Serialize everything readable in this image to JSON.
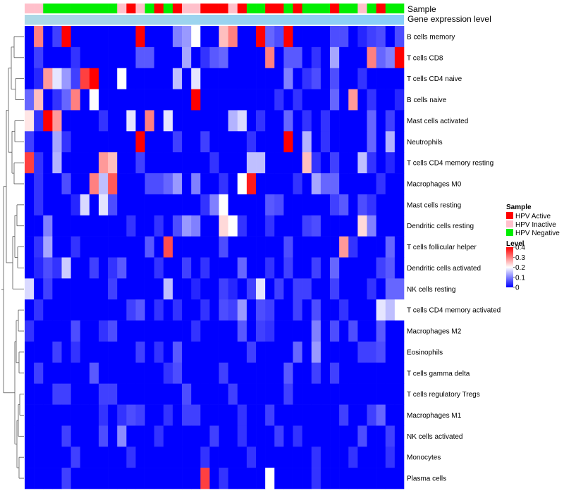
{
  "chart_data": {
    "type": "heatmap",
    "title": "",
    "xlabel": "",
    "ylabel": "",
    "annotation_tracks": [
      "Sample",
      "Gene expression level"
    ],
    "sample_groups": [
      "HPV Inactive",
      "HPV Inactive",
      "HPV Negative",
      "HPV Negative",
      "HPV Negative",
      "HPV Negative",
      "HPV Negative",
      "HPV Negative",
      "HPV Negative",
      "HPV Negative",
      "HPV Inactive",
      "HPV Active",
      "HPV Inactive",
      "HPV Negative",
      "HPV Active",
      "HPV Negative",
      "HPV Active",
      "HPV Inactive",
      "HPV Inactive",
      "HPV Active",
      "HPV Active",
      "HPV Active",
      "HPV Inactive",
      "HPV Active",
      "HPV Negative",
      "HPV Negative",
      "HPV Active",
      "HPV Active",
      "HPV Negative",
      "HPV Active",
      "HPV Negative",
      "HPV Negative",
      "HPV Negative",
      "HPV Active",
      "HPV Negative",
      "HPV Negative",
      "HPV Inactive",
      "HPV Negative",
      "HPV Active",
      "HPV Negative",
      "HPV Negative"
    ],
    "gene_expression_bar": "light-blue gradient",
    "rows": [
      "B cells memory",
      "T cells CD8",
      "T cells CD4 naive",
      "B cells naive",
      "Mast cells activated",
      "Neutrophils",
      "T cells CD4 memory resting",
      "Macrophages M0",
      "Mast cells resting",
      "Dendritic cells resting",
      "T cells follicular helper",
      "Dendritic cells activated",
      "NK cells resting",
      "T cells CD4 memory activated",
      "Macrophages M2",
      "Eosinophils",
      "T cells gamma delta",
      "T cells regulatory  Tregs",
      "Macrophages M1",
      "NK cells activated",
      "Monocytes",
      "Plasma cells"
    ],
    "values": [
      [
        0.0,
        0.3,
        0.0,
        0.05,
        0.4,
        0.0,
        0.0,
        0.0,
        0.0,
        0.0,
        0.0,
        0.0,
        0.4,
        0.0,
        0.0,
        0.0,
        0.1,
        0.12,
        0.2,
        0.0,
        0.0,
        0.25,
        0.3,
        0.0,
        0.0,
        0.4,
        0.08,
        0.06,
        0.4,
        0.0,
        0.0,
        0.0,
        0.0,
        0.06,
        0.06,
        0.0,
        0.03,
        0.05,
        0.06,
        0.0,
        0.06
      ],
      [
        0.0,
        0.05,
        0.0,
        0.0,
        0.0,
        0.04,
        0.0,
        0.0,
        0.0,
        0.0,
        0.0,
        0.0,
        0.07,
        0.07,
        0.0,
        0.0,
        0.0,
        0.13,
        0.0,
        0.04,
        0.07,
        0.08,
        0.0,
        0.0,
        0.0,
        0.0,
        0.3,
        0.0,
        0.07,
        0.07,
        0.0,
        0.04,
        0.0,
        0.13,
        0.0,
        0.0,
        0.0,
        0.3,
        0.08,
        0.1,
        0.4
      ],
      [
        0.0,
        0.03,
        0.28,
        0.18,
        0.12,
        0.05,
        0.35,
        0.4,
        0.0,
        0.0,
        0.2,
        0.0,
        0.0,
        0.0,
        0.0,
        0.0,
        0.15,
        0.0,
        0.18,
        0.0,
        0.0,
        0.0,
        0.0,
        0.0,
        0.0,
        0.0,
        0.0,
        0.0,
        0.1,
        0.0,
        0.04,
        0.06,
        0.0,
        0.06,
        0.0,
        0.0,
        0.04,
        0.0,
        0.0,
        0.0,
        0.0
      ],
      [
        0.08,
        0.25,
        0.0,
        0.04,
        0.08,
        0.3,
        0.0,
        0.2,
        0.0,
        0.0,
        0.0,
        0.0,
        0.0,
        0.0,
        0.0,
        0.0,
        0.0,
        0.0,
        0.4,
        0.0,
        0.0,
        0.0,
        0.0,
        0.0,
        0.0,
        0.0,
        0.0,
        0.04,
        0.0,
        0.04,
        0.0,
        0.0,
        0.0,
        0.08,
        0.0,
        0.28,
        0.0,
        0.04,
        0.0,
        0.0,
        0.03
      ],
      [
        0.22,
        0.04,
        0.4,
        0.28,
        0.0,
        0.0,
        0.0,
        0.0,
        0.04,
        0.0,
        0.0,
        0.18,
        0.0,
        0.3,
        0.0,
        0.18,
        0.0,
        0.0,
        0.0,
        0.0,
        0.0,
        0.0,
        0.14,
        0.17,
        0.0,
        0.04,
        0.0,
        0.0,
        0.08,
        0.0,
        0.04,
        0.0,
        0.04,
        0.0,
        0.0,
        0.0,
        0.0,
        0.08,
        0.0,
        0.05,
        0.0
      ],
      [
        0.05,
        0.0,
        0.0,
        0.13,
        0.04,
        0.0,
        0.0,
        0.0,
        0.0,
        0.0,
        0.0,
        0.0,
        0.4,
        0.0,
        0.0,
        0.0,
        0.05,
        0.0,
        0.0,
        0.05,
        0.0,
        0.0,
        0.0,
        0.0,
        0.04,
        0.0,
        0.0,
        0.0,
        0.4,
        0.0,
        0.14,
        0.0,
        0.04,
        0.0,
        0.0,
        0.0,
        0.0,
        0.08,
        0.0,
        0.14,
        0.0
      ],
      [
        0.35,
        0.04,
        0.0,
        0.14,
        0.0,
        0.0,
        0.0,
        0.0,
        0.28,
        0.25,
        0.0,
        0.0,
        0.05,
        0.0,
        0.0,
        0.0,
        0.0,
        0.0,
        0.0,
        0.0,
        0.04,
        0.0,
        0.0,
        0.0,
        0.15,
        0.15,
        0.0,
        0.0,
        0.0,
        0.0,
        0.25,
        0.04,
        0.0,
        0.05,
        0.0,
        0.0,
        0.15,
        0.04,
        0.0,
        0.03,
        0.0
      ],
      [
        0.0,
        0.04,
        0.0,
        0.0,
        0.06,
        0.0,
        0.0,
        0.3,
        0.15,
        0.33,
        0.0,
        0.0,
        0.0,
        0.06,
        0.06,
        0.08,
        0.12,
        0.0,
        0.1,
        0.0,
        0.0,
        0.04,
        0.0,
        0.2,
        0.38,
        0.0,
        0.0,
        0.0,
        0.0,
        0.04,
        0.0,
        0.13,
        0.08,
        0.08,
        0.0,
        0.0,
        0.0,
        0.0,
        0.04,
        0.0,
        0.0
      ],
      [
        0.0,
        0.04,
        0.0,
        0.0,
        0.0,
        0.03,
        0.17,
        0.0,
        0.18,
        0.06,
        0.0,
        0.0,
        0.0,
        0.0,
        0.0,
        0.0,
        0.0,
        0.0,
        0.0,
        0.04,
        0.1,
        0.2,
        0.0,
        0.0,
        0.0,
        0.0,
        0.07,
        0.06,
        0.0,
        0.0,
        0.0,
        0.0,
        0.0,
        0.05,
        0.07,
        0.0,
        0.06,
        0.04,
        0.0,
        0.0,
        0.0
      ],
      [
        0.0,
        0.0,
        0.1,
        0.0,
        0.0,
        0.0,
        0.0,
        0.0,
        0.0,
        0.0,
        0.0,
        0.04,
        0.0,
        0.0,
        0.04,
        0.0,
        0.06,
        0.12,
        0.1,
        0.0,
        0.0,
        0.23,
        0.2,
        0.04,
        0.0,
        0.0,
        0.04,
        0.0,
        0.0,
        0.0,
        0.05,
        0.06,
        0.0,
        0.0,
        0.0,
        0.0,
        0.23,
        0.1,
        0.0,
        0.0,
        0.0
      ],
      [
        0.0,
        0.04,
        0.13,
        0.0,
        0.0,
        0.04,
        0.0,
        0.0,
        0.0,
        0.0,
        0.0,
        0.0,
        0.0,
        0.07,
        0.0,
        0.34,
        0.0,
        0.0,
        0.0,
        0.0,
        0.0,
        0.06,
        0.0,
        0.0,
        0.0,
        0.0,
        0.0,
        0.0,
        0.06,
        0.0,
        0.0,
        0.0,
        0.0,
        0.0,
        0.28,
        0.04,
        0.0,
        0.0,
        0.0,
        0.08,
        0.0
      ],
      [
        0.0,
        0.03,
        0.06,
        0.04,
        0.16,
        0.0,
        0.0,
        0.05,
        0.0,
        0.04,
        0.07,
        0.0,
        0.0,
        0.0,
        0.04,
        0.0,
        0.0,
        0.05,
        0.0,
        0.04,
        0.0,
        0.0,
        0.0,
        0.08,
        0.0,
        0.0,
        0.04,
        0.0,
        0.05,
        0.0,
        0.0,
        0.05,
        0.0,
        0.08,
        0.0,
        0.0,
        0.0,
        0.0,
        0.05,
        0.07,
        0.0
      ],
      [
        0.17,
        0.0,
        0.05,
        0.0,
        0.0,
        0.0,
        0.0,
        0.0,
        0.0,
        0.05,
        0.0,
        0.0,
        0.0,
        0.0,
        0.0,
        0.15,
        0.0,
        0.0,
        0.03,
        0.0,
        0.0,
        0.05,
        0.03,
        0.0,
        0.05,
        0.18,
        0.0,
        0.05,
        0.0,
        0.05,
        0.05,
        0.0,
        0.0,
        0.05,
        0.0,
        0.0,
        0.0,
        0.04,
        0.0,
        0.08,
        0.08
      ],
      [
        0.0,
        0.04,
        0.0,
        0.0,
        0.0,
        0.0,
        0.0,
        0.0,
        0.0,
        0.0,
        0.0,
        0.05,
        0.07,
        0.0,
        0.04,
        0.0,
        0.04,
        0.0,
        0.0,
        0.04,
        0.0,
        0.06,
        0.05,
        0.12,
        0.0,
        0.06,
        0.05,
        0.0,
        0.0,
        0.05,
        0.0,
        0.06,
        0.0,
        0.0,
        0.04,
        0.0,
        0.0,
        0.0,
        0.18,
        0.15,
        0.2
      ],
      [
        0.04,
        0.0,
        0.0,
        0.0,
        0.0,
        0.06,
        0.0,
        0.0,
        0.04,
        0.06,
        0.0,
        0.0,
        0.0,
        0.0,
        0.0,
        0.0,
        0.0,
        0.0,
        0.04,
        0.0,
        0.0,
        0.0,
        0.0,
        0.07,
        0.0,
        0.05,
        0.04,
        0.0,
        0.0,
        0.0,
        0.0,
        0.1,
        0.0,
        0.06,
        0.0,
        0.06,
        0.0,
        0.0,
        0.07,
        0.0,
        0.0
      ],
      [
        0.0,
        0.0,
        0.0,
        0.05,
        0.0,
        0.04,
        0.0,
        0.0,
        0.0,
        0.0,
        0.0,
        0.0,
        0.05,
        0.0,
        0.04,
        0.0,
        0.07,
        0.0,
        0.0,
        0.0,
        0.0,
        0.0,
        0.0,
        0.0,
        0.05,
        0.0,
        0.0,
        0.0,
        0.0,
        0.08,
        0.0,
        0.12,
        0.0,
        0.0,
        0.0,
        0.0,
        0.05,
        0.05,
        0.06,
        0.0,
        0.0
      ],
      [
        0.0,
        0.05,
        0.0,
        0.0,
        0.0,
        0.0,
        0.0,
        0.07,
        0.0,
        0.0,
        0.0,
        0.0,
        0.0,
        0.0,
        0.0,
        0.04,
        0.06,
        0.0,
        0.0,
        0.0,
        0.0,
        0.05,
        0.0,
        0.0,
        0.0,
        0.0,
        0.0,
        0.0,
        0.07,
        0.0,
        0.0,
        0.05,
        0.0,
        0.05,
        0.0,
        0.0,
        0.0,
        0.0,
        0.0,
        0.0,
        0.0
      ],
      [
        0.0,
        0.0,
        0.0,
        0.05,
        0.05,
        0.0,
        0.0,
        0.0,
        0.05,
        0.05,
        0.0,
        0.0,
        0.0,
        0.0,
        0.0,
        0.0,
        0.0,
        0.06,
        0.0,
        0.0,
        0.0,
        0.0,
        0.05,
        0.0,
        0.0,
        0.0,
        0.0,
        0.0,
        0.05,
        0.0,
        0.0,
        0.0,
        0.0,
        0.0,
        0.0,
        0.0,
        0.0,
        0.0,
        0.0,
        0.0,
        0.0
      ],
      [
        0.0,
        0.0,
        0.0,
        0.0,
        0.0,
        0.0,
        0.0,
        0.0,
        0.04,
        0.0,
        0.04,
        0.06,
        0.05,
        0.0,
        0.0,
        0.04,
        0.0,
        0.05,
        0.05,
        0.0,
        0.0,
        0.0,
        0.0,
        0.04,
        0.0,
        0.0,
        0.05,
        0.0,
        0.0,
        0.0,
        0.0,
        0.0,
        0.0,
        0.0,
        0.05,
        0.0,
        0.0,
        0.05,
        0.08,
        0.0,
        0.0
      ],
      [
        0.0,
        0.0,
        0.0,
        0.0,
        0.05,
        0.0,
        0.0,
        0.0,
        0.06,
        0.0,
        0.11,
        0.0,
        0.0,
        0.0,
        0.04,
        0.0,
        0.0,
        0.0,
        0.0,
        0.0,
        0.05,
        0.0,
        0.0,
        0.04,
        0.0,
        0.0,
        0.0,
        0.05,
        0.0,
        0.04,
        0.0,
        0.0,
        0.0,
        0.0,
        0.0,
        0.0,
        0.06,
        0.0,
        0.0,
        0.05,
        0.0
      ],
      [
        0.0,
        0.0,
        0.0,
        0.0,
        0.0,
        0.05,
        0.0,
        0.0,
        0.0,
        0.0,
        0.0,
        0.04,
        0.0,
        0.0,
        0.0,
        0.0,
        0.0,
        0.0,
        0.0,
        0.04,
        0.0,
        0.0,
        0.0,
        0.0,
        0.04,
        0.0,
        0.0,
        0.0,
        0.0,
        0.0,
        0.0,
        0.04,
        0.0,
        0.0,
        0.0,
        0.04,
        0.0,
        0.0,
        0.0,
        0.04,
        0.0
      ],
      [
        0.0,
        0.0,
        0.0,
        0.0,
        0.05,
        0.0,
        0.0,
        0.0,
        0.0,
        0.0,
        0.0,
        0.0,
        0.0,
        0.0,
        0.0,
        0.0,
        0.0,
        0.0,
        0.0,
        0.35,
        0.0,
        0.04,
        0.0,
        0.0,
        0.0,
        0.0,
        0.2,
        0.0,
        0.0,
        0.0,
        0.0,
        0.04,
        0.0,
        0.0,
        0.0,
        0.0,
        0.0,
        0.0,
        0.0,
        0.0,
        0.0
      ]
    ],
    "legend": {
      "sample_title": "Sample",
      "sample_entries": [
        {
          "label": "HPV Active",
          "color": "#ff0000"
        },
        {
          "label": "HPV Inactive",
          "color": "#ffc0cb"
        },
        {
          "label": "HPV Negative",
          "color": "#00ee00"
        }
      ],
      "level_title": "Level",
      "level_ticks": [
        "0.4",
        "0.3",
        "0.2",
        "0.1",
        "0"
      ],
      "level_tick_values": [
        0.4,
        0.3,
        0.2,
        0.1,
        0
      ],
      "level_range": [
        0,
        0.4
      ],
      "colors": {
        "low": "#0000ff",
        "mid": "#ffffff",
        "high": "#ff0000"
      },
      "placement": "right"
    }
  }
}
